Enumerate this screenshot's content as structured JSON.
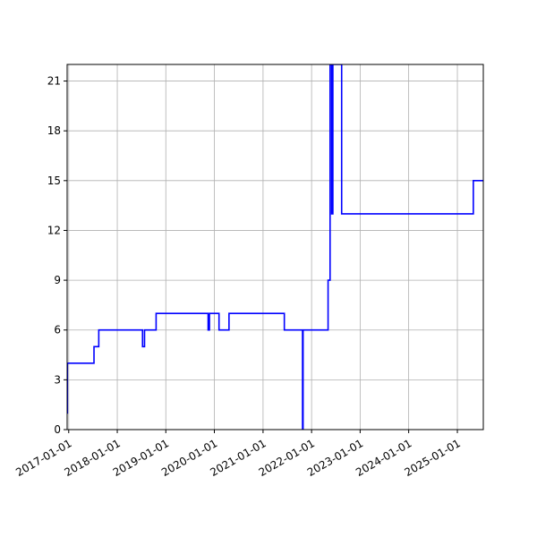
{
  "chart_data": {
    "type": "line",
    "title": "",
    "xlabel": "",
    "ylabel": "",
    "grid": true,
    "x_axis": {
      "kind": "date",
      "range": [
        "2016-12-20",
        "2025-07-15"
      ],
      "ticks": [
        "2017-01-01",
        "2018-01-01",
        "2019-01-01",
        "2020-01-01",
        "2021-01-01",
        "2022-01-01",
        "2023-01-01",
        "2024-01-01",
        "2025-01-01"
      ]
    },
    "y_axis": {
      "range": [
        0,
        22
      ],
      "ticks": [
        0,
        3,
        6,
        9,
        12,
        15,
        18,
        21
      ]
    },
    "series": [
      {
        "color": "#0000ff",
        "step": "post",
        "points": [
          [
            "2016-12-20",
            1
          ],
          [
            "2016-12-22",
            4
          ],
          [
            "2017-07-10",
            5
          ],
          [
            "2017-08-15",
            6
          ],
          [
            "2018-07-10",
            5
          ],
          [
            "2018-07-25",
            6
          ],
          [
            "2018-10-20",
            7
          ],
          [
            "2019-11-15",
            6
          ],
          [
            "2019-11-25",
            7
          ],
          [
            "2020-02-05",
            6
          ],
          [
            "2020-04-20",
            7
          ],
          [
            "2021-06-10",
            6
          ],
          [
            "2021-10-25",
            0
          ],
          [
            "2021-10-29",
            6
          ],
          [
            "2022-05-05",
            9
          ],
          [
            "2022-05-20",
            22
          ],
          [
            "2022-06-01",
            13
          ],
          [
            "2022-06-10",
            22
          ],
          [
            "2022-08-15",
            13
          ],
          [
            "2025-05-01",
            15
          ],
          [
            "2025-07-15",
            15
          ]
        ]
      }
    ]
  }
}
